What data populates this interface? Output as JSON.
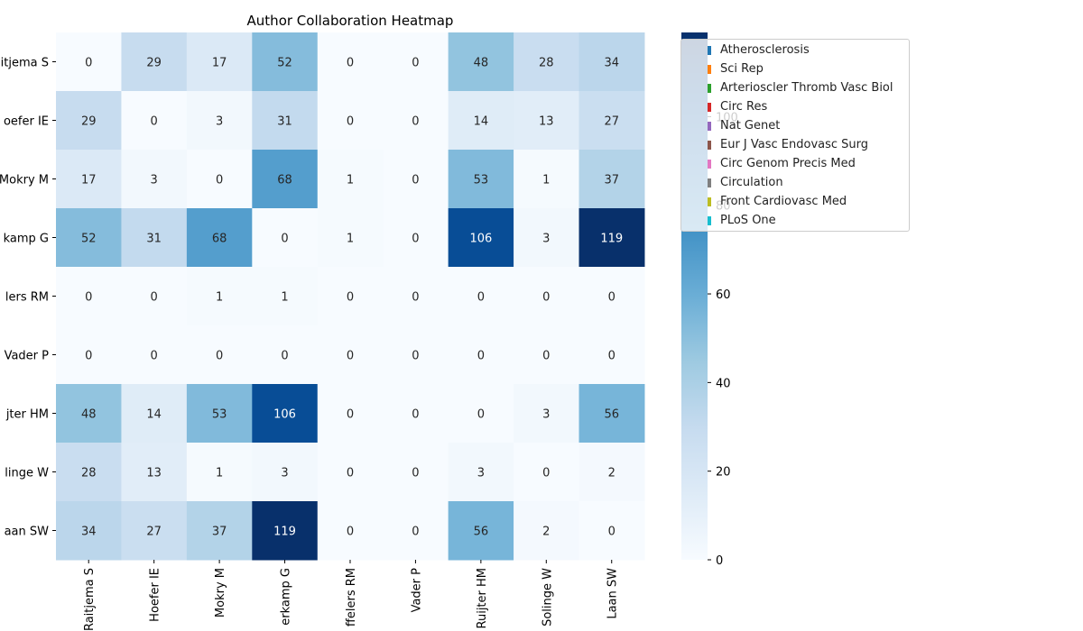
{
  "chart_data": {
    "type": "heatmap",
    "title": "Author Collaboration Heatmap",
    "row_labels": [
      "Raitjema S",
      "Hoefer IE",
      "Mokry M",
      "Pasterkamp G",
      "Kuiffelers RM",
      "Vader P",
      "de Ruijter HM",
      "van Solinge W",
      "van der Laan SW"
    ],
    "row_labels_visible": [
      "itjema S",
      "oefer IE",
      "Mokry M",
      "kamp G",
      "lers RM",
      "Vader P",
      "jter HM",
      "linge W",
      "aan SW"
    ],
    "col_labels": [
      "Raitjema S",
      "Hoefer IE",
      "Mokry M",
      "Pasterkamp G",
      "Kuiffelers RM",
      "Vader P",
      "de Ruijter HM",
      "van Solinge W",
      "van der Laan SW"
    ],
    "col_labels_visible": [
      "Raitjema S",
      "Hoefer IE",
      "Mokry M",
      "erkamp G",
      "ffelers RM",
      "Vader P",
      "Ruijter HM",
      "Solinge W",
      "Laan SW"
    ],
    "values": [
      [
        0,
        29,
        17,
        52,
        0,
        0,
        48,
        28,
        34
      ],
      [
        29,
        0,
        3,
        31,
        0,
        0,
        14,
        13,
        27
      ],
      [
        17,
        3,
        0,
        68,
        1,
        0,
        53,
        1,
        37
      ],
      [
        52,
        31,
        68,
        0,
        1,
        0,
        106,
        3,
        119
      ],
      [
        0,
        0,
        1,
        1,
        0,
        0,
        0,
        0,
        0
      ],
      [
        0,
        0,
        0,
        0,
        0,
        0,
        0,
        0,
        0
      ],
      [
        48,
        14,
        53,
        106,
        0,
        0,
        0,
        3,
        56
      ],
      [
        28,
        13,
        1,
        3,
        0,
        0,
        3,
        0,
        2
      ],
      [
        34,
        27,
        37,
        119,
        0,
        0,
        56,
        2,
        0
      ]
    ],
    "colormap": "Blues",
    "vmin": 0,
    "vmax": 119,
    "colorbar_ticks": [
      0,
      20,
      40,
      60,
      80,
      100
    ],
    "legend": {
      "placement": "upper-right",
      "entries": [
        {
          "label": "Atherosclerosis",
          "color": "#1f77b4"
        },
        {
          "label": "Sci Rep",
          "color": "#ff7f0e"
        },
        {
          "label": "Arterioscler Thromb Vasc Biol",
          "color": "#2ca02c"
        },
        {
          "label": "Circ Res",
          "color": "#d62728"
        },
        {
          "label": "Nat Genet",
          "color": "#9467bd"
        },
        {
          "label": "Eur J Vasc Endovasc Surg",
          "color": "#8c564b"
        },
        {
          "label": "Circ Genom Precis Med",
          "color": "#e377c2"
        },
        {
          "label": "Circulation",
          "color": "#7f7f7f"
        },
        {
          "label": "Front Cardiovasc Med",
          "color": "#bcbd22"
        },
        {
          "label": "PLoS One",
          "color": "#17becf"
        }
      ]
    }
  }
}
